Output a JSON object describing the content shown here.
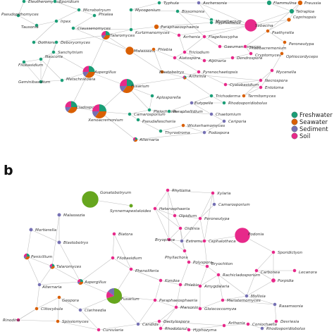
{
  "colors": {
    "freshwater": "#1b9e77",
    "seawater": "#d95f02",
    "sediment": "#7570b3",
    "soil": "#e7298a",
    "panel_b_extra": "#66a61e",
    "edge": "#bdbdbd",
    "node_outline": "#ffffff"
  },
  "panel_b_label": "b",
  "legend": [
    {
      "key": "freshwater",
      "label": "Freshwater"
    },
    {
      "key": "seawater",
      "label": "Seawater"
    },
    {
      "key": "sediment",
      "label": "Sediment"
    },
    {
      "key": "soil",
      "label": "Soil"
    }
  ],
  "panel_a_nodes": [
    {
      "label": "Eleutheromyces",
      "kind": "freshwater"
    },
    {
      "label": "Sporidium",
      "kind": "freshwater"
    },
    {
      "label": "Typhula",
      "kind": "freshwater"
    },
    {
      "label": "Aschersonia",
      "kind": "sediment"
    },
    {
      "label": "Flammulina",
      "kind": "freshwater"
    },
    {
      "label": "Preussia",
      "kind": "seawater"
    },
    {
      "label": "Pseudopithomyces",
      "kind": "freshwater"
    },
    {
      "label": "Microbotryum",
      "kind": "freshwater"
    },
    {
      "label": "Mycogonium",
      "kind": "freshwater"
    },
    {
      "label": "Bissomonia",
      "kind": "freshwater"
    },
    {
      "label": "Phialea",
      "kind": "freshwater"
    },
    {
      "label": "Tetraploa",
      "kind": "freshwater"
    },
    {
      "label": "Myrothecium",
      "kind": "freshwater"
    },
    {
      "label": "Coprinopsis",
      "kind": "seawater"
    },
    {
      "label": "Tausonia",
      "kind": "freshwater"
    },
    {
      "label": "Irpex",
      "kind": "freshwater"
    },
    {
      "label": "Claussenomyces",
      "kind": "freshwater"
    },
    {
      "label": "Kurtzmanomyces",
      "kind": "freshwater"
    },
    {
      "label": "Hyphodiscus",
      "kind": "freshwater"
    },
    {
      "label": "Sebacina",
      "kind": "soil"
    },
    {
      "label": "Talaromyces",
      "kind": "mix"
    },
    {
      "label": "Paraphaeosphaeria",
      "kind": "seawater"
    },
    {
      "label": "Arrhenia",
      "kind": "soil"
    },
    {
      "label": "Flagelloscypha",
      "kind": "soil"
    },
    {
      "label": "Psathyrella",
      "kind": "seawater"
    },
    {
      "label": "Dothiora",
      "kind": "freshwater"
    },
    {
      "label": "Deboryomyces",
      "kind": "freshwater"
    },
    {
      "label": "Gaeumannomyces",
      "kind": "soil"
    },
    {
      "label": "Phaeoacremonium",
      "kind": "soil"
    },
    {
      "label": "Peroneutypa",
      "kind": "seawater"
    },
    {
      "label": "Sanchytrium",
      "kind": "freshwater"
    },
    {
      "label": "Malassezia",
      "kind": "seawater"
    },
    {
      "label": "Phlebia",
      "kind": "seawater"
    },
    {
      "label": "Triclodium",
      "kind": "soil"
    },
    {
      "label": "Cryptomyces",
      "kind": "soil"
    },
    {
      "label": "Ophiocordyceps",
      "kind": "seawater"
    },
    {
      "label": "Filobasidium",
      "kind": "freshwater"
    },
    {
      "label": "Naucoria",
      "kind": "freshwater"
    },
    {
      "label": "Alatospora",
      "kind": "soil"
    },
    {
      "label": "Alpinaria",
      "kind": "soil"
    },
    {
      "label": "Dendrospora",
      "kind": "soil"
    },
    {
      "label": "Geminibasidium",
      "kind": "freshwater"
    },
    {
      "label": "Metschnikowia",
      "kind": "freshwater"
    },
    {
      "label": "Aspergillus",
      "kind": "mix"
    },
    {
      "label": "Mycenella",
      "kind": "soil"
    },
    {
      "label": "Blastobotrys",
      "kind": "seawater"
    },
    {
      "label": "Pyrenochaetopsis",
      "kind": "soil"
    },
    {
      "label": "Fusarium",
      "kind": "mix"
    },
    {
      "label": "Arthrinia",
      "kind": "mix"
    },
    {
      "label": "Necrospora",
      "kind": "soil"
    },
    {
      "label": "Cystobasidium",
      "kind": "soil"
    },
    {
      "label": "Entoloma",
      "kind": "soil"
    },
    {
      "label": "Aplosporella",
      "kind": "freshwater"
    },
    {
      "label": "Cladosporium",
      "kind": "mix"
    },
    {
      "label": "Pleiochaeta",
      "kind": "freshwater"
    },
    {
      "label": "Trichoderma",
      "kind": "freshwater"
    },
    {
      "label": "Termitomyces",
      "kind": "seawater"
    },
    {
      "label": "Rhodosporidiobolus",
      "kind": "freshwater"
    },
    {
      "label": "Eutypella",
      "kind": "sediment"
    },
    {
      "label": "Xenoacremonium",
      "kind": "mix"
    },
    {
      "label": "Camarosporium",
      "kind": "freshwater"
    },
    {
      "label": "Paraphellidium",
      "kind": "freshwater"
    },
    {
      "label": "Chaetomium",
      "kind": "sediment"
    },
    {
      "label": "Pseudallescheria",
      "kind": "freshwater"
    },
    {
      "label": "Ceriporia",
      "kind": "sediment"
    },
    {
      "label": "Thyrostroma",
      "kind": "freshwater"
    },
    {
      "label": "Wickerhamomyces",
      "kind": "seawater"
    },
    {
      "label": "Podospora",
      "kind": "sediment"
    },
    {
      "label": "Alternaria",
      "kind": "mix"
    }
  ],
  "panel_b_nodes": [
    {
      "label": "Gonatobotryum",
      "kind": "panel_b_extra"
    },
    {
      "label": "Synnemapestaloides",
      "kind": "panel_b_extra"
    },
    {
      "label": "Rhytisma",
      "kind": "soil"
    },
    {
      "label": "Xylaria",
      "kind": "soil"
    },
    {
      "label": "Camarosporium",
      "kind": "sediment"
    },
    {
      "label": "Heterosphaeria",
      "kind": "soil"
    },
    {
      "label": "Malassezia",
      "kind": "sediment"
    },
    {
      "label": "Olpidium",
      "kind": "soil"
    },
    {
      "label": "Peroneutypa",
      "kind": "soil"
    },
    {
      "label": "Mortierella",
      "kind": "sediment"
    },
    {
      "label": "Oidiinia",
      "kind": "soil"
    },
    {
      "label": "Biatora",
      "kind": "soil"
    },
    {
      "label": "Bryoplaca",
      "kind": "soil"
    },
    {
      "label": "Extremus",
      "kind": "sediment"
    },
    {
      "label": "Cephalotheca",
      "kind": "soil"
    },
    {
      "label": "Blastobotrys",
      "kind": "sediment"
    },
    {
      "label": "Podonia",
      "kind": "soil"
    },
    {
      "label": "Phyllachora",
      "kind": "soil"
    },
    {
      "label": "Penicillium",
      "kind": "mix"
    },
    {
      "label": "Filobasidium",
      "kind": "soil"
    },
    {
      "label": "Polyspora",
      "kind": "soil"
    },
    {
      "label": "Bryochiton",
      "kind": "soil"
    },
    {
      "label": "Sporidictyon",
      "kind": "soil"
    },
    {
      "label": "Talaromyces",
      "kind": "mix"
    },
    {
      "label": "Phenoliferia",
      "kind": "soil"
    },
    {
      "label": "Rachicladosporium",
      "kind": "soil"
    },
    {
      "label": "Carbonea",
      "kind": "soil"
    },
    {
      "label": "Lecanora",
      "kind": "soil"
    },
    {
      "label": "Aspergillus",
      "kind": "mix"
    },
    {
      "label": "Alternaria",
      "kind": "sediment"
    },
    {
      "label": "Kondoa",
      "kind": "soil"
    },
    {
      "label": "Phlebia",
      "kind": "soil"
    },
    {
      "label": "Amygdalaria",
      "kind": "soil"
    },
    {
      "label": "Porpidia",
      "kind": "soil"
    },
    {
      "label": "Mollisia",
      "kind": "sediment"
    },
    {
      "label": "Fusarium",
      "kind": "mix_b"
    },
    {
      "label": "Geopora",
      "kind": "seawater"
    },
    {
      "label": "Paraphaeosphaeria",
      "kind": "soil"
    },
    {
      "label": "Meristemomyces",
      "kind": "soil"
    },
    {
      "label": "Rasamsonia",
      "kind": "sediment"
    },
    {
      "label": "Clitocybula",
      "kind": "seawater"
    },
    {
      "label": "Clarireedia",
      "kind": "sediment"
    },
    {
      "label": "Marsonina",
      "kind": "soil"
    },
    {
      "label": "Gloiococcomyza",
      "kind": "soil"
    },
    {
      "label": "Rinodina",
      "kind": "soil"
    },
    {
      "label": "Spissiomyces",
      "kind": "seawater"
    },
    {
      "label": "Candida",
      "kind": "sediment"
    },
    {
      "label": "Dactylospora",
      "kind": "soil"
    },
    {
      "label": "Devriesia",
      "kind": "soil"
    },
    {
      "label": "Curvularia",
      "kind": "soil"
    },
    {
      "label": "Rhodotorula",
      "kind": "soil"
    },
    {
      "label": "Arthonia",
      "kind": "soil"
    },
    {
      "label": "Coniochaeta",
      "kind": "soil"
    },
    {
      "label": "Rhodosporidiobolus",
      "kind": "sediment"
    },
    {
      "label": "Hyphozyma",
      "kind": "soil"
    }
  ]
}
